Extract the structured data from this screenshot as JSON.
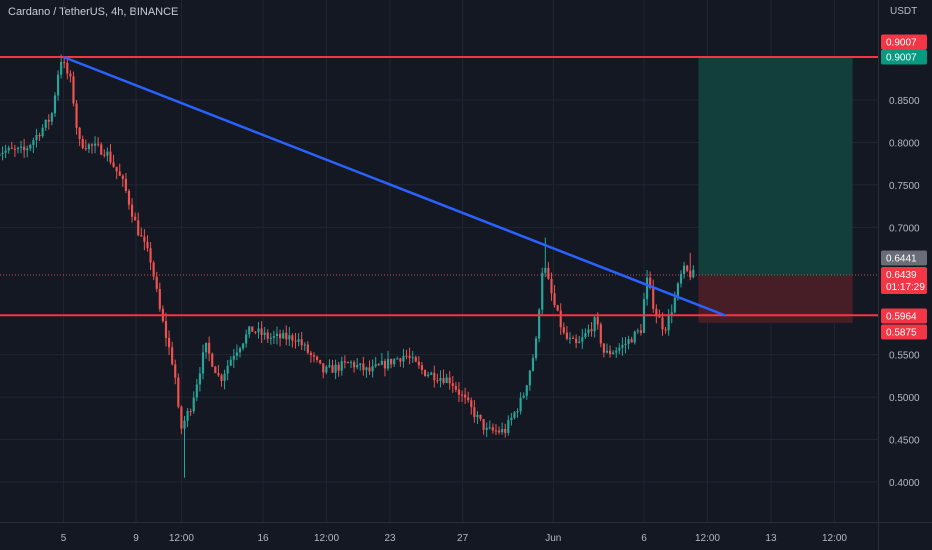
{
  "header": {
    "title": "Cardano / TetherUS, 4h, BINANCE",
    "currency": "USDT"
  },
  "colors": {
    "background": "#141823",
    "grid": "#1f2533",
    "axis_text": "#b3b8c4",
    "bull": "#26a69a",
    "bear": "#ef5350",
    "level_line": "#f23645",
    "trend_line": "#2962ff",
    "target_zone": "#12433f",
    "stop_zone": "#4a1f27",
    "price_tag_green": "#089981",
    "price_tag_red": "#f23645",
    "price_tag_grey": "#6a6d78"
  },
  "chart_data": {
    "type": "candlestick",
    "title": "Cardano / TetherUS, 4h, BINANCE",
    "ylabel": "USDT",
    "ylim": [
      0.37,
      0.96
    ],
    "y_ticks": [
      "0.4000",
      "0.4500",
      "0.5000",
      "0.5500",
      "0.7000",
      "0.7500",
      "0.8000",
      "0.8500"
    ],
    "x_ticks": [
      {
        "label": "5",
        "t": 5
      },
      {
        "label": "9",
        "t": 9
      },
      {
        "label": "12:00",
        "t": 11.5
      },
      {
        "label": "16",
        "t": 16
      },
      {
        "label": "12:00",
        "t": 19.5
      },
      {
        "label": "23",
        "t": 23
      },
      {
        "label": "27",
        "t": 27
      },
      {
        "label": "Jun",
        "t": 32
      },
      {
        "label": "6",
        "t": 37
      },
      {
        "label": "12:00",
        "t": 40.5
      },
      {
        "label": "13",
        "t": 44
      },
      {
        "label": "12:00",
        "t": 47.5
      }
    ],
    "price_path": [
      [
        0,
        0.79
      ],
      [
        3,
        0.79
      ],
      [
        4.5,
        0.83
      ],
      [
        5,
        0.9
      ],
      [
        5.6,
        0.87
      ],
      [
        6,
        0.8
      ],
      [
        7.5,
        0.79
      ],
      [
        8.5,
        0.75
      ],
      [
        9.2,
        0.7
      ],
      [
        10,
        0.66
      ],
      [
        10.5,
        0.6
      ],
      [
        11.3,
        0.53
      ],
      [
        11.6,
        0.46
      ],
      [
        12.2,
        0.49
      ],
      [
        13,
        0.56
      ],
      [
        13.8,
        0.52
      ],
      [
        14.5,
        0.55
      ],
      [
        15.5,
        0.58
      ],
      [
        16.5,
        0.57
      ],
      [
        18,
        0.57
      ],
      [
        19.5,
        0.53
      ],
      [
        21,
        0.54
      ],
      [
        22,
        0.53
      ],
      [
        24,
        0.55
      ],
      [
        25,
        0.53
      ],
      [
        26.5,
        0.52
      ],
      [
        27.5,
        0.49
      ],
      [
        28.5,
        0.46
      ],
      [
        29.5,
        0.46
      ],
      [
        30.5,
        0.5
      ],
      [
        31.2,
        0.56
      ],
      [
        31.6,
        0.66
      ],
      [
        32.2,
        0.61
      ],
      [
        32.8,
        0.57
      ],
      [
        33.5,
        0.56
      ],
      [
        34.5,
        0.59
      ],
      [
        35,
        0.55
      ],
      [
        36,
        0.56
      ],
      [
        37,
        0.58
      ],
      [
        37.3,
        0.64
      ],
      [
        37.8,
        0.6
      ],
      [
        38.3,
        0.58
      ],
      [
        38.8,
        0.61
      ],
      [
        39.3,
        0.65
      ],
      [
        39.8,
        0.644
      ]
    ],
    "extra_highs": [
      {
        "t": 5,
        "high": 0.9007
      },
      {
        "t": 11.6,
        "low": 0.405
      },
      {
        "t": 31.6,
        "high": 0.688
      },
      {
        "t": 37.3,
        "high": 0.648
      },
      {
        "t": 39.5,
        "high": 0.67
      }
    ],
    "horizontal_levels": [
      0.9007,
      0.5964
    ],
    "trend_line": {
      "from": [
        5,
        0.9007
      ],
      "to": [
        41.5,
        0.596
      ]
    },
    "position": {
      "t_start": 40,
      "t_end": 48.5,
      "entry": 0.6439,
      "target": 0.9007,
      "stop": 0.5875
    },
    "current_price": 0.6439,
    "price_tags": [
      {
        "value": 0.9007,
        "label": "0.9007",
        "sub": "",
        "color": "red"
      },
      {
        "value": 0.9007,
        "label": "0.9007",
        "sub": "",
        "color": "green"
      },
      {
        "value": 0.6441,
        "label": "0.6441",
        "sub": "",
        "color": "grey"
      },
      {
        "value": 0.6439,
        "label": "0.6439",
        "sub": "01:17:29",
        "color": "red"
      },
      {
        "value": 0.5964,
        "label": "0.5964",
        "sub": "",
        "color": "red"
      },
      {
        "value": 0.5875,
        "label": "0.5875",
        "sub": "",
        "color": "red"
      }
    ]
  }
}
